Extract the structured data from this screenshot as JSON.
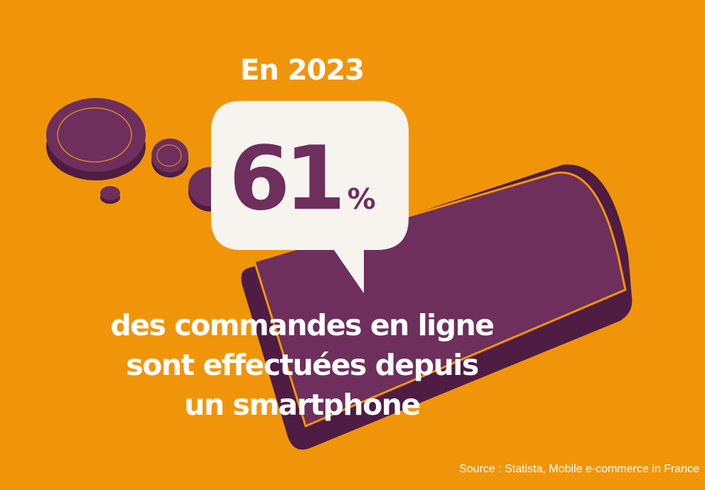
{
  "headline": {
    "year_text": "En 2023"
  },
  "stat": {
    "value": "61",
    "unit": "%"
  },
  "caption": {
    "line1": "des commandes en ligne",
    "line2": "sont effectuées depuis",
    "line3": "un smartphone"
  },
  "source": {
    "text": "Source : Statista, Mobile e-commerce in France"
  },
  "colors": {
    "background": "#f0950a",
    "purple": "#6e2f5c",
    "purple_dark": "#4f1c44",
    "bubble": "#f7f4ef",
    "text": "#ffffff"
  },
  "icons": [
    "coin-icon",
    "smartphone-icon",
    "speech-bubble-icon"
  ]
}
